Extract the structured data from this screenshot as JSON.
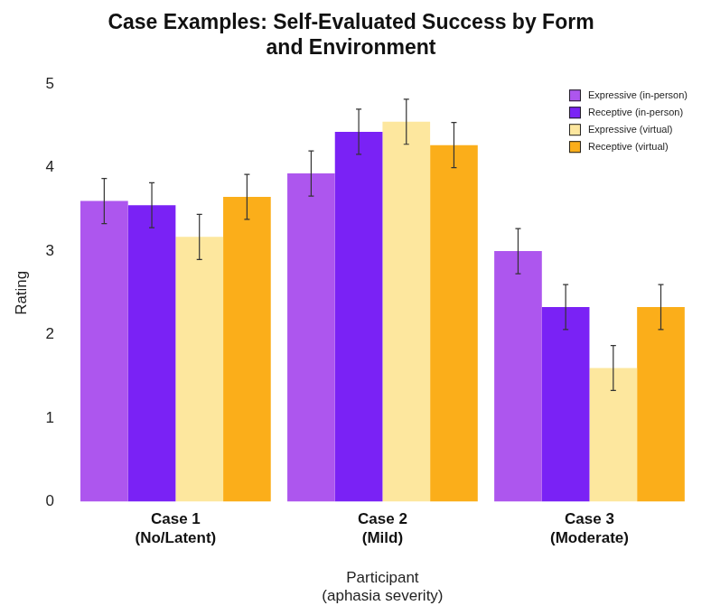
{
  "chart_data": {
    "type": "bar",
    "title": "Case Examples: Self-Evaluated Success by Form and Environment",
    "x_label": "Participant\n(aphasia severity)",
    "y_label": "Rating",
    "categories": [
      [
        "Case 1",
        "(No/Latent)"
      ],
      [
        "Case 2",
        "(Mild)"
      ],
      [
        "Case 3",
        "(Moderate)"
      ]
    ],
    "series": [
      {
        "name": "Expressive (in-person)",
        "color": "#ad56ee",
        "values": [
          3.6,
          3.93,
          3.0
        ],
        "errors": [
          0.27,
          0.27,
          0.27
        ]
      },
      {
        "name": "Receptive (in-person)",
        "color": "#7a22f5",
        "values": [
          3.55,
          4.43,
          2.33
        ],
        "errors": [
          0.27,
          0.27,
          0.27
        ]
      },
      {
        "name": "Expressive (virtual)",
        "color": "#fde79e",
        "values": [
          3.17,
          4.55,
          1.6
        ],
        "errors": [
          0.27,
          0.27,
          0.27
        ]
      },
      {
        "name": "Receptive (virtual)",
        "color": "#fbae1a",
        "values": [
          3.65,
          4.27,
          2.33
        ],
        "errors": [
          0.27,
          0.27,
          0.27
        ]
      }
    ],
    "ylim": [
      0,
      5
    ],
    "yticks": [
      0,
      1,
      2,
      3,
      4,
      5
    ],
    "grid": false,
    "legend": "upper right"
  }
}
